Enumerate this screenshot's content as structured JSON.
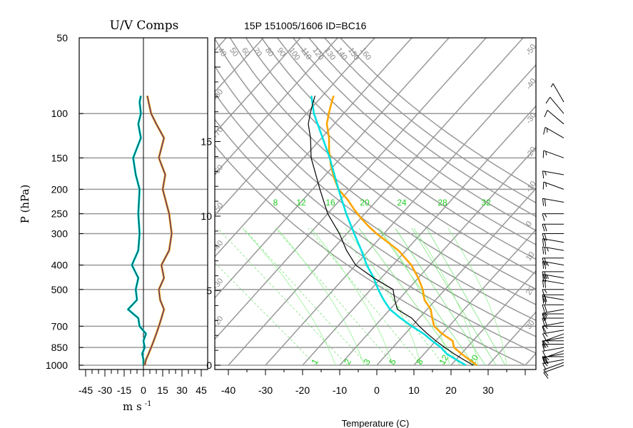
{
  "chart_data": [
    {
      "type": "line",
      "panel": "hodograph-components",
      "title": "U/V Comps",
      "xlabel": "m s",
      "xlabel_exponent": "-1",
      "ylabel": "P (hPa)",
      "x_ticks": [
        "-45",
        "-30",
        "-15",
        "0",
        "15",
        "30",
        "45"
      ],
      "y_ticks": [
        "50",
        "100",
        "150",
        "200",
        "250",
        "300",
        "400",
        "500",
        "700",
        "850",
        "1000"
      ],
      "xlim": [
        -50,
        50
      ],
      "ylim": [
        1000,
        50
      ],
      "y_scale": "log",
      "series": [
        {
          "color": "#004d4d",
          "pressure": [
            1000,
            950,
            900,
            850,
            800,
            750,
            700,
            650,
            600,
            550,
            500,
            450,
            400,
            350,
            300,
            250,
            200,
            175,
            150,
            125,
            110,
            100,
            90,
            85
          ],
          "values": [
            0,
            0,
            -1,
            1,
            0,
            2,
            -3,
            -4,
            -12,
            -5,
            -6,
            -4,
            -9,
            -4,
            -3,
            -4,
            -3,
            -6,
            -8,
            -2,
            -4,
            -2,
            -3,
            -2
          ]
        },
        {
          "color": "#4a2a8a",
          "pressure": [
            1000,
            950,
            900,
            850,
            800,
            750,
            700,
            650,
            600,
            550,
            500,
            450,
            400,
            350,
            300,
            250,
            200,
            175,
            150,
            125,
            110,
            100,
            90,
            85
          ],
          "values": [
            1,
            2,
            4,
            6,
            8,
            10,
            12,
            14,
            16,
            13,
            12,
            16,
            14,
            20,
            22,
            20,
            15,
            17,
            12,
            16,
            10,
            6,
            4,
            3
          ]
        }
      ]
    },
    {
      "type": "line",
      "panel": "skew-t",
      "title": "15P 151005/1606 ID=BC16",
      "xlabel": "Temperature (C)",
      "x_ticks": [
        "-40",
        "-30",
        "-20",
        "-10",
        "0",
        "10",
        "20",
        "30"
      ],
      "xlim": [
        -42,
        42
      ],
      "height_ticks": [
        "0",
        "5",
        "10",
        "15"
      ],
      "theta_labels": [
        "40",
        "50",
        "60",
        "70",
        "80",
        "90",
        "100",
        "110",
        "120",
        "130",
        "140",
        "150",
        "160"
      ],
      "isotherm_labels": [
        "-50",
        "-40",
        "-30",
        "-20",
        "-10",
        "0",
        "10",
        "20",
        "30"
      ],
      "mixing_ratio_labels": [
        "8",
        "12",
        "16",
        "20",
        "24",
        "28",
        "32"
      ],
      "mixing_ratio_bottom_labels": [
        "1",
        "2",
        "3",
        "5",
        "8",
        "12",
        "20"
      ],
      "left_axis_labels": [
        "-80",
        "-70",
        "-60",
        "-50",
        "-40",
        "-30",
        "-20"
      ],
      "series": [
        {
          "name": "",
          "color": "#ffa500",
          "pressure": [
            1000,
            950,
            900,
            850,
            800,
            750,
            700,
            650,
            600,
            550,
            500,
            450,
            400,
            350,
            300,
            280,
            260,
            240,
            220,
            200,
            180,
            160,
            140,
            125,
            110,
            100,
            90,
            85
          ],
          "values": [
            27,
            23.5,
            20,
            16.5,
            14.5,
            10,
            6,
            3.5,
            1,
            -3,
            -6,
            -10,
            -15,
            -22,
            -32,
            -36,
            -40,
            -44,
            -48,
            -53,
            -57,
            -61,
            -65,
            -68,
            -72,
            -74,
            -76,
            -77
          ]
        },
        {
          "name": "",
          "color": "#00e0e0",
          "pressure": [
            1000,
            950,
            900,
            850,
            800,
            750,
            700,
            650,
            600,
            550,
            500,
            450,
            400,
            350,
            300,
            250,
            200,
            150,
            100,
            85
          ],
          "values": [
            24,
            20,
            16,
            13,
            9,
            5,
            0,
            -5,
            -10,
            -14,
            -18,
            -22,
            -27,
            -32,
            -38,
            -45,
            -53,
            -63,
            -78,
            -83
          ]
        },
        {
          "name": "",
          "color": "#000000",
          "pressure": [
            1000,
            950,
            900,
            850,
            800,
            750,
            700,
            650,
            600,
            550,
            500,
            450,
            400,
            350,
            300,
            250,
            200,
            150,
            125,
            110,
            100,
            90,
            85
          ],
          "values": [
            26,
            22,
            18,
            14,
            10,
            6,
            2,
            -2,
            -8,
            -11,
            -14,
            -22,
            -30,
            -36,
            -42,
            -50,
            -58,
            -68,
            -73,
            -77,
            -79,
            -81,
            -82
          ]
        }
      ]
    },
    {
      "type": "wind-barbs",
      "panel": "wind-barbs",
      "color": "#000000",
      "pressure": [
        1000,
        975,
        950,
        925,
        900,
        875,
        850,
        825,
        800,
        775,
        750,
        725,
        700,
        675,
        650,
        625,
        600,
        575,
        550,
        525,
        500,
        475,
        450,
        425,
        400,
        375,
        350,
        325,
        300,
        275,
        250,
        225,
        200,
        175,
        150,
        125,
        110,
        100,
        90
      ],
      "speed_kt": [
        10,
        12,
        15,
        18,
        20,
        15,
        12,
        10,
        10,
        12,
        15,
        15,
        12,
        15,
        20,
        15,
        15,
        20,
        22,
        20,
        15,
        20,
        25,
        20,
        25,
        20,
        25,
        20,
        20,
        20,
        15,
        20,
        15,
        15,
        15,
        15,
        10,
        10,
        5
      ],
      "direction_deg": [
        250,
        250,
        260,
        270,
        260,
        250,
        260,
        270,
        270,
        260,
        250,
        260,
        270,
        260,
        270,
        270,
        260,
        270,
        280,
        270,
        270,
        280,
        280,
        270,
        280,
        270,
        280,
        280,
        270,
        270,
        270,
        280,
        290,
        280,
        290,
        300,
        310,
        320,
        330
      ]
    }
  ]
}
